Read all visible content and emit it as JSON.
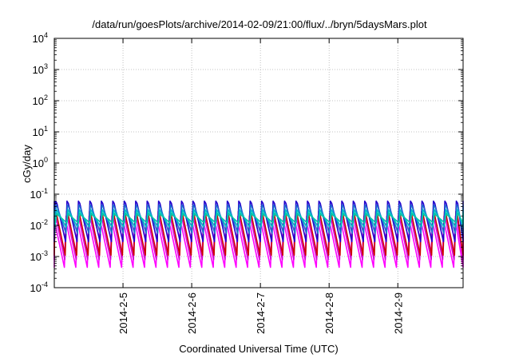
{
  "chart_data": {
    "type": "line",
    "title": "/data/run/goesPlots/archive/2014-02-09/21:00/flux/../bryn/5daysMars.plot",
    "xlabel": "Coordinated Universal Time (UTC)",
    "ylabel": "cGy/day",
    "yscale": "log",
    "ylim": [
      0.0001,
      10000
    ],
    "xlim_days": [
      4.0,
      9.95
    ],
    "grid": true,
    "y_ticks": [
      {
        "base": "10",
        "exp": "-4"
      },
      {
        "base": "10",
        "exp": "-3"
      },
      {
        "base": "10",
        "exp": "-2"
      },
      {
        "base": "10",
        "exp": "-1"
      },
      {
        "base": "10",
        "exp": "0"
      },
      {
        "base": "10",
        "exp": "1"
      },
      {
        "base": "10",
        "exp": "2"
      },
      {
        "base": "10",
        "exp": "3"
      },
      {
        "base": "10",
        "exp": "4"
      }
    ],
    "x_ticks": [
      {
        "label": "2014-2-5",
        "day": 5
      },
      {
        "label": "2014-2-6",
        "day": 6
      },
      {
        "label": "2014-2-7",
        "day": 7
      },
      {
        "label": "2014-2-8",
        "day": 8
      },
      {
        "label": "2014-2-9",
        "day": 9
      }
    ],
    "oscillation": {
      "cycles_per_day": 6,
      "description": "Sawtooth daily cycling of dose rates"
    },
    "series": [
      {
        "color": "#ff00ff",
        "high": 0.011,
        "low": 0.00045
      },
      {
        "color": "#d400d4",
        "high": 0.02,
        "low": 0.0008
      },
      {
        "color": "#cc0000",
        "high": 0.028,
        "low": 0.0011
      },
      {
        "color": "#2200cc",
        "high": 0.06,
        "low": 0.003
      },
      {
        "color": "#1f6fd0",
        "high": 0.045,
        "low": 0.0055
      },
      {
        "color": "#00b8c8",
        "high": 0.032,
        "low": 0.0085
      },
      {
        "color": "#00c8a8",
        "high": 0.025,
        "low": 0.012
      }
    ]
  }
}
